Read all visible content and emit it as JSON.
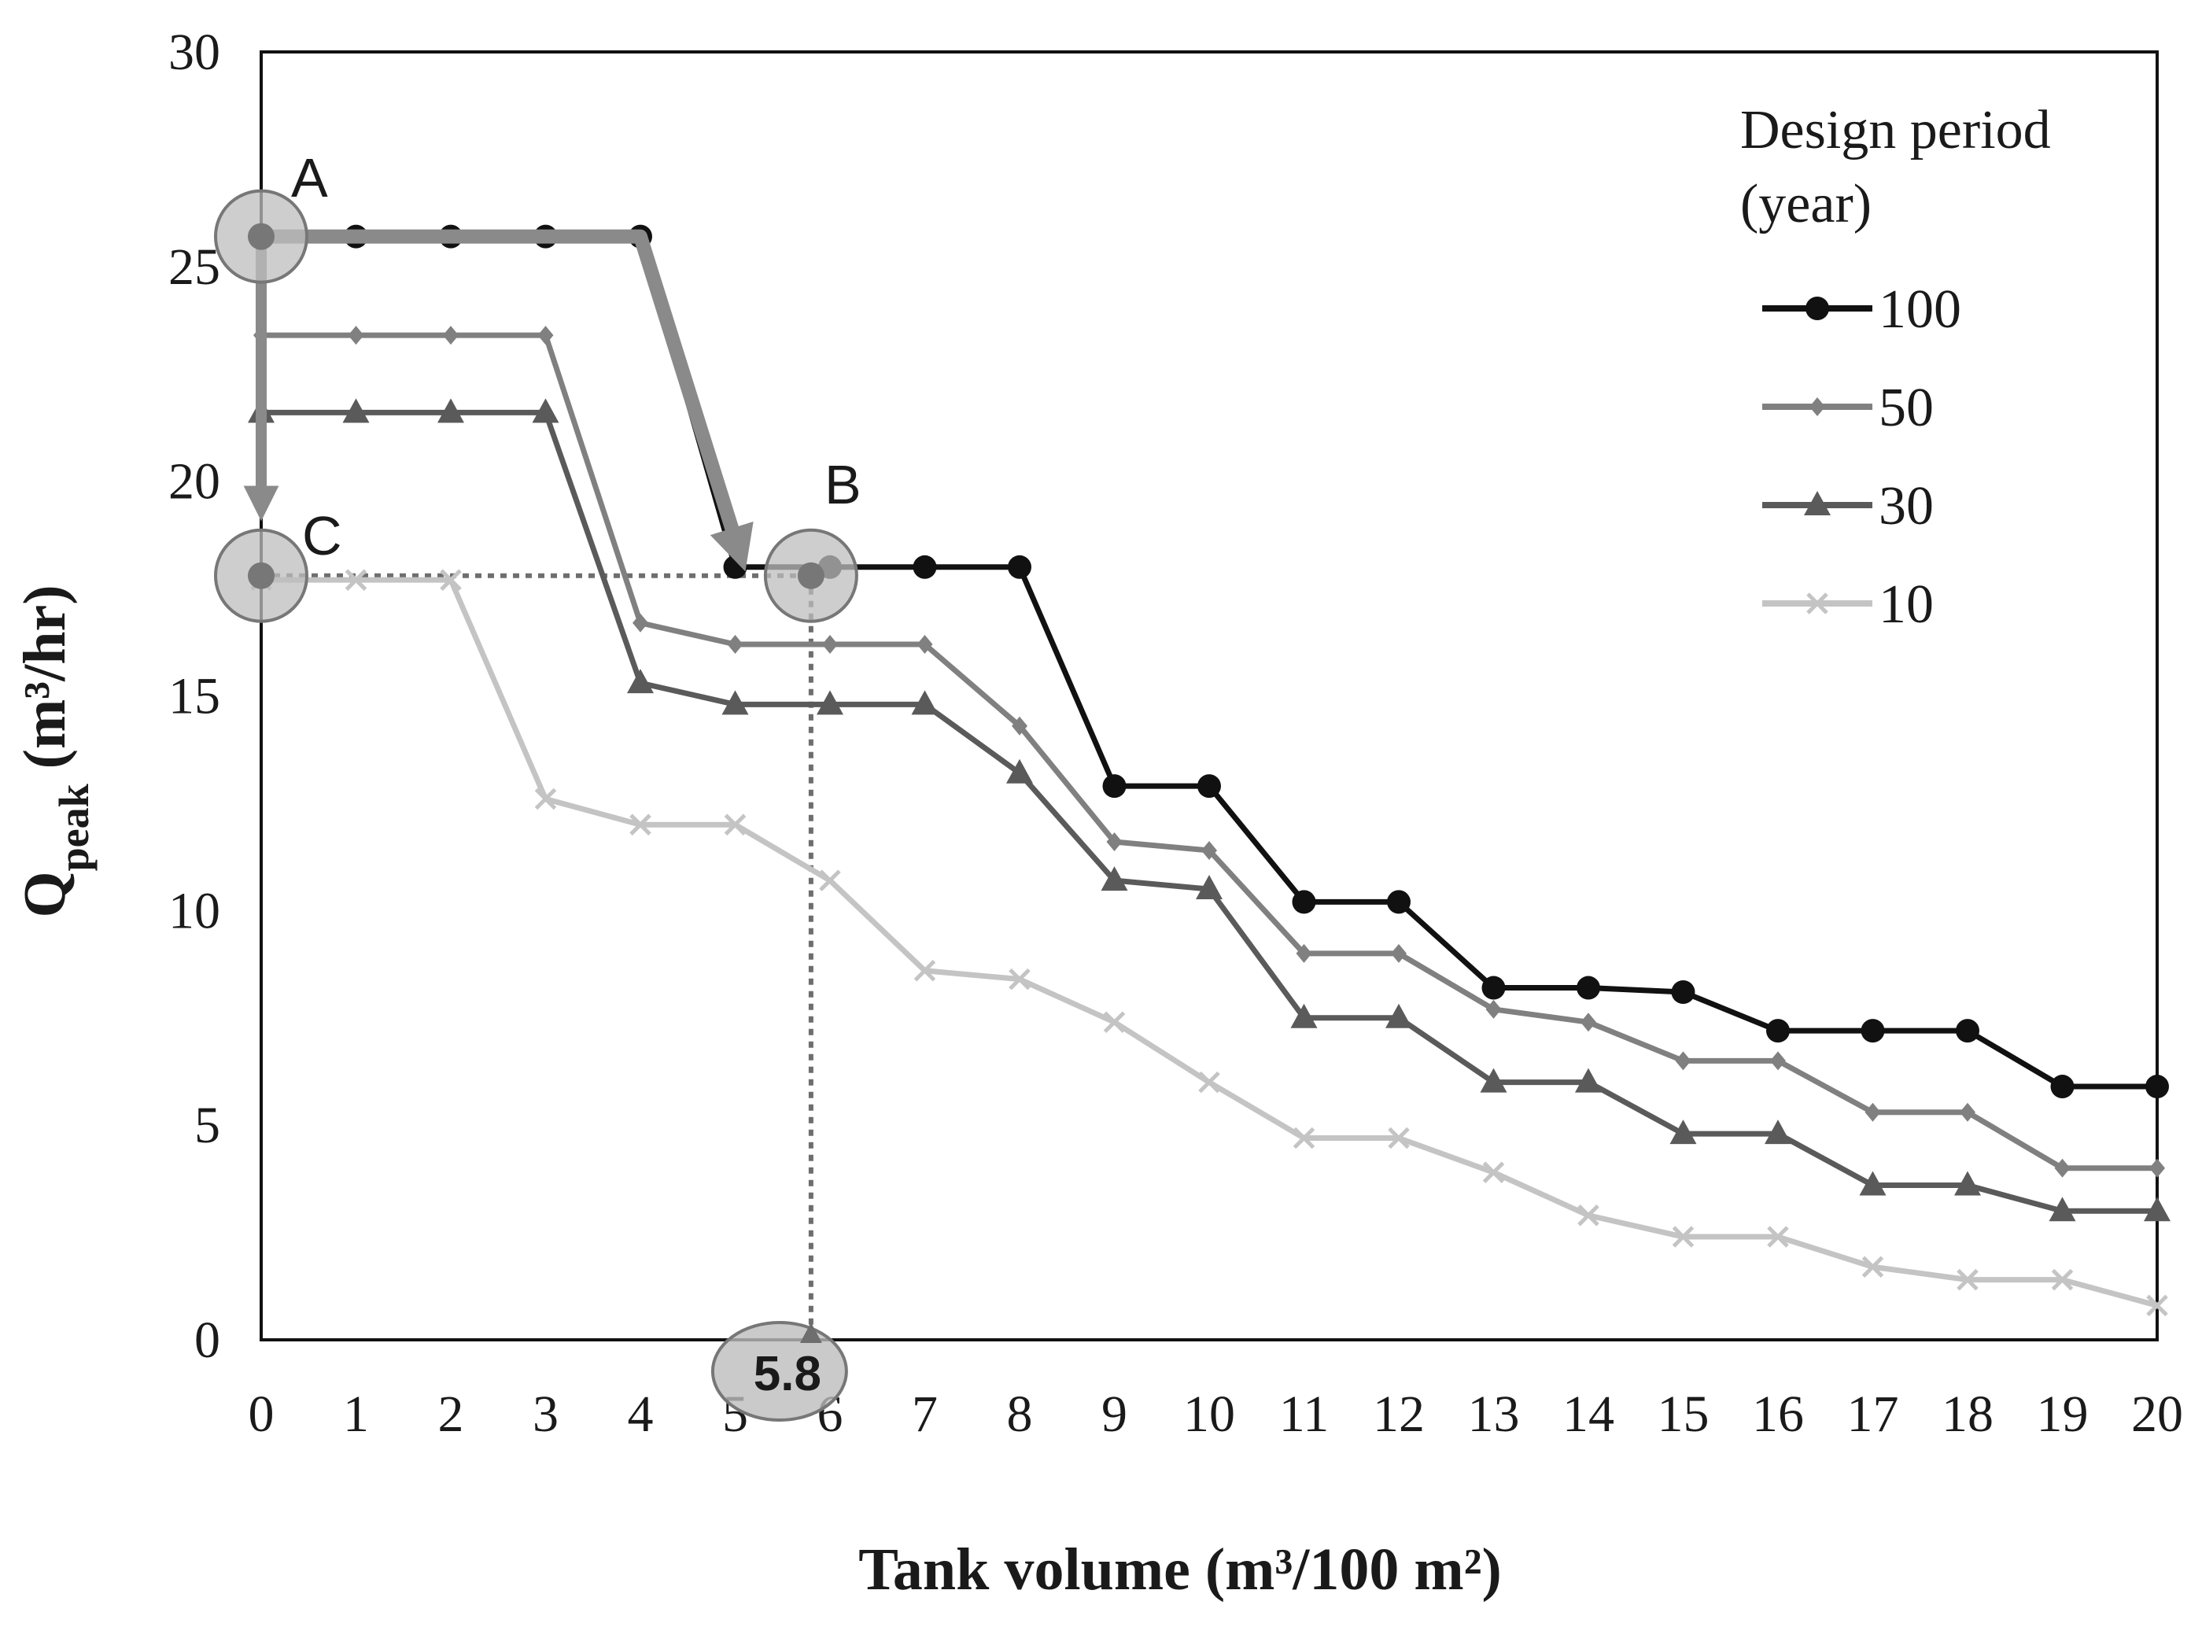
{
  "chart_data": {
    "type": "line",
    "title": "",
    "xlabel": "Tank volume (m³/100 m²)",
    "ylabel_main": "Q",
    "ylabel_sub": "peak",
    "ylabel_rest": " (m³/hr)",
    "xlim": [
      0,
      20
    ],
    "ylim": [
      0,
      30
    ],
    "x": [
      0,
      1,
      2,
      3,
      4,
      5,
      6,
      7,
      8,
      9,
      10,
      11,
      12,
      13,
      14,
      15,
      16,
      17,
      18,
      19,
      20
    ],
    "x_ticks": [
      "0",
      "1",
      "2",
      "3",
      "4",
      "5",
      "6",
      "7",
      "8",
      "9",
      "10",
      "11",
      "12",
      "13",
      "14",
      "15",
      "16",
      "17",
      "18",
      "19",
      "20"
    ],
    "y_ticks": [
      0,
      5,
      10,
      15,
      20,
      25,
      30
    ],
    "y_tick_labels": [
      "0",
      "5",
      "10",
      "15",
      "20",
      "25",
      "30"
    ],
    "legend_title_line1": "Design period",
    "legend_title_line2": "(year)",
    "legend_position": "top-right",
    "series": [
      {
        "name": "100",
        "color": "#111111",
        "marker": "circle",
        "values": [
          25.7,
          25.7,
          25.7,
          25.7,
          25.7,
          18.0,
          18.0,
          18.0,
          18.0,
          12.9,
          12.9,
          10.2,
          10.2,
          8.2,
          8.2,
          8.1,
          7.2,
          7.2,
          7.2,
          5.9,
          5.9
        ]
      },
      {
        "name": "50",
        "color": "#808080",
        "marker": "diamond",
        "values": [
          23.4,
          23.4,
          23.4,
          23.4,
          16.7,
          16.2,
          16.2,
          16.2,
          14.3,
          11.6,
          11.4,
          9.0,
          9.0,
          7.7,
          7.4,
          6.5,
          6.5,
          5.3,
          5.3,
          4.0,
          4.0
        ]
      },
      {
        "name": "30",
        "color": "#5a5a5a",
        "marker": "triangle",
        "values": [
          21.6,
          21.6,
          21.6,
          21.6,
          15.3,
          14.8,
          14.8,
          14.8,
          13.2,
          10.7,
          10.5,
          7.5,
          7.5,
          6.0,
          6.0,
          4.8,
          4.8,
          3.6,
          3.6,
          3.0,
          3.0
        ]
      },
      {
        "name": "10",
        "color": "#c4c4c4",
        "marker": "x",
        "values": [
          17.7,
          17.7,
          17.7,
          12.6,
          12.0,
          12.0,
          10.7,
          8.6,
          8.4,
          7.4,
          6.0,
          4.7,
          4.7,
          3.9,
          2.9,
          2.4,
          2.4,
          1.7,
          1.4,
          1.4,
          0.8
        ]
      }
    ],
    "annotations": {
      "point_a_label": "A",
      "point_b_label": "B",
      "point_c_label": "C",
      "point_a": {
        "x": 0,
        "y": 25.7
      },
      "point_b": {
        "x": 5.8,
        "y": 17.8
      },
      "point_c": {
        "x": 0,
        "y": 17.8
      },
      "readout_value": 5.8,
      "readout_label": "5.8"
    }
  }
}
